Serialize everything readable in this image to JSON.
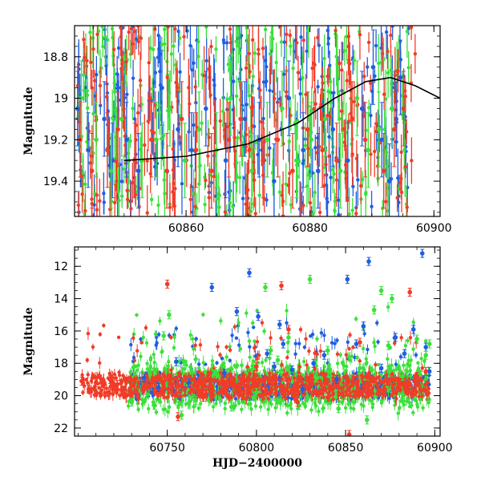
{
  "chart_data": [
    {
      "type": "scatter",
      "title": "",
      "xlabel": "",
      "ylabel": "Magnitude",
      "xlim": [
        60842,
        60901
      ],
      "ylim": [
        19.57,
        18.65
      ],
      "y_inverted": true,
      "grid": false,
      "x_ticks": [
        60860,
        60880,
        60900
      ],
      "y_ticks": [
        18.8,
        19,
        19.2,
        19.4
      ],
      "x_tick_labels": [
        "60860",
        "60880",
        "60900"
      ],
      "y_tick_labels": [
        "18.8",
        "19",
        "19.2",
        "19.4"
      ],
      "series": [
        {
          "color": "#1f5fe0",
          "points": [
            [
              60842.5,
              19.05
            ],
            [
              60844.2,
              19.25
            ],
            [
              60846.8,
              19.1
            ],
            [
              60848.1,
              19.3
            ],
            [
              60850.4,
              19.2
            ],
            [
              60852.3,
              19.35
            ],
            [
              60856.1,
              18.95
            ],
            [
              60858.7,
              19.15
            ],
            [
              60860.9,
              19.25
            ],
            [
              60863.2,
              19.05
            ],
            [
              60866.4,
              19.3
            ],
            [
              60869.5,
              19.1
            ],
            [
              60871.8,
              19.2
            ],
            [
              60874.2,
              19.4
            ],
            [
              60876.6,
              19.0
            ],
            [
              60878.9,
              19.25
            ],
            [
              60881.3,
              19.35
            ],
            [
              60883.7,
              19.15
            ],
            [
              60886.1,
              19.3
            ],
            [
              60888.4,
              19.05
            ],
            [
              60890.2,
              18.85
            ],
            [
              60891.6,
              19.2
            ],
            [
              60892.8,
              19.4
            ],
            [
              60893.9,
              19.1
            ],
            [
              60894.6,
              18.9
            ]
          ]
        },
        {
          "color": "#3ce03c",
          "points": [
            [
              60843.1,
              19.0
            ],
            [
              60845.5,
              19.2
            ],
            [
              60847.9,
              19.35
            ],
            [
              60849.6,
              19.1
            ],
            [
              60852.9,
              19.3
            ],
            [
              60855.2,
              19.2
            ],
            [
              60857.4,
              19.05
            ],
            [
              60859.8,
              19.3
            ],
            [
              60862.1,
              19.15
            ],
            [
              60864.9,
              19.25
            ],
            [
              60867.2,
              19.0
            ],
            [
              60870.6,
              19.35
            ],
            [
              60873.1,
              19.2
            ],
            [
              60875.5,
              19.05
            ],
            [
              60877.8,
              19.3
            ],
            [
              60880.2,
              19.2
            ],
            [
              60882.4,
              19.1
            ],
            [
              60884.9,
              19.35
            ],
            [
              60887.6,
              19.0
            ],
            [
              60889.4,
              19.25
            ],
            [
              60891.1,
              19.15
            ],
            [
              60893.2,
              19.05
            ]
          ]
        },
        {
          "color": "#f03c28",
          "points": [
            [
              60842.9,
              19.2
            ],
            [
              60844.8,
              19.35
            ],
            [
              60847.3,
              19.25
            ],
            [
              60849.0,
              19.15
            ],
            [
              60851.7,
              19.3
            ],
            [
              60854.4,
              19.2
            ],
            [
              60856.9,
              19.35
            ],
            [
              60859.3,
              19.1
            ],
            [
              60861.6,
              19.25
            ],
            [
              60864.1,
              19.35
            ],
            [
              60866.9,
              19.2
            ],
            [
              60868.8,
              19.1
            ],
            [
              60872.4,
              19.3
            ],
            [
              60874.8,
              19.2
            ],
            [
              60877.2,
              19.35
            ],
            [
              60879.6,
              19.15
            ],
            [
              60882.0,
              19.25
            ],
            [
              60884.3,
              19.3
            ],
            [
              60886.8,
              19.1
            ],
            [
              60888.9,
              19.2
            ],
            [
              60891.9,
              19.35
            ],
            [
              60893.6,
              19.15
            ],
            [
              60895.1,
              19.05
            ]
          ]
        }
      ],
      "model_curve": {
        "color": "#000000",
        "points": [
          [
            60850,
            19.3
          ],
          [
            60860,
            19.28
          ],
          [
            60870,
            19.22
          ],
          [
            60878,
            19.12
          ],
          [
            60884,
            19.0
          ],
          [
            60889,
            18.92
          ],
          [
            60893,
            18.9
          ],
          [
            60897,
            18.94
          ],
          [
            60901,
            19.0
          ]
        ]
      }
    },
    {
      "type": "scatter",
      "title": "",
      "xlabel": "HJD−2400000",
      "ylabel": "Magnitude",
      "xlim": [
        60698,
        60903
      ],
      "ylim": [
        22.5,
        10.8
      ],
      "y_inverted": true,
      "grid": false,
      "x_ticks": [
        60750,
        60800,
        60850,
        60900
      ],
      "y_ticks": [
        12,
        14,
        16,
        18,
        20,
        22
      ],
      "x_tick_labels": [
        "60750",
        "60800",
        "60850",
        "60900"
      ],
      "y_tick_labels": [
        "12",
        "14",
        "16",
        "18",
        "20",
        "22"
      ],
      "series": [
        {
          "color": "#1f5fe0",
          "points": [
            [
              60737,
              18.9
            ],
            [
              60745,
              19.5
            ],
            [
              60755,
              17.9
            ],
            [
              60762,
              19.2
            ],
            [
              60775,
              13.3
            ],
            [
              60782,
              18.6
            ],
            [
              60789,
              14.8
            ],
            [
              60796,
              12.4
            ],
            [
              60801,
              15.1
            ],
            [
              60806,
              17.4
            ],
            [
              60810,
              18.2
            ],
            [
              60813,
              15.6
            ],
            [
              60815,
              16.8
            ],
            [
              60820,
              18.4
            ],
            [
              60826,
              19.6
            ],
            [
              60832,
              18.0
            ],
            [
              60838,
              17.5
            ],
            [
              60845,
              19.0
            ],
            [
              60851,
              12.8
            ],
            [
              60856,
              16.8
            ],
            [
              60860,
              15.7
            ],
            [
              60863,
              11.7
            ],
            [
              60870,
              18.3
            ],
            [
              60878,
              16.4
            ],
            [
              60883,
              17.4
            ],
            [
              60888,
              15.9
            ],
            [
              60893,
              11.2
            ],
            [
              60895,
              17.0
            ],
            [
              60897,
              18.5
            ]
          ]
        },
        {
          "color": "#3ce03c",
          "points": [
            [
              60730,
              20.4
            ],
            [
              60743,
              20.6
            ],
            [
              60748,
              16.3
            ],
            [
              60751,
              15.0
            ],
            [
              60758,
              21.2
            ],
            [
              60766,
              20.3
            ],
            [
              60777,
              18.5
            ],
            [
              60786,
              20.7
            ],
            [
              60800,
              19.8
            ],
            [
              60805,
              13.3
            ],
            [
              60808,
              17.2
            ],
            [
              60812,
              17.8
            ],
            [
              60818,
              16.4
            ],
            [
              60824,
              20.6
            ],
            [
              60830,
              12.8
            ],
            [
              60834,
              18.9
            ],
            [
              60840,
              17.2
            ],
            [
              60846,
              20.8
            ],
            [
              60852,
              17.6
            ],
            [
              60858,
              18.3
            ],
            [
              60862,
              21.5
            ],
            [
              60866,
              14.7
            ],
            [
              60870,
              13.5
            ],
            [
              60874,
              16.9
            ],
            [
              60876,
              14.0
            ],
            [
              60882,
              18.8
            ],
            [
              60890,
              16.5
            ],
            [
              60895,
              17.5
            ],
            [
              60897,
              16.8
            ]
          ]
        },
        {
          "color": "#f03c28",
          "points": [
            [
              60702,
              19.1
            ],
            [
              60706,
              19.6
            ],
            [
              60710,
              19.2
            ],
            [
              60714,
              19.4
            ],
            [
              60718,
              19.0
            ],
            [
              60722,
              19.3
            ],
            [
              60750,
              13.1
            ],
            [
              60756,
              21.3
            ],
            [
              60770,
              20.1
            ],
            [
              60790,
              19.8
            ],
            [
              60800,
              18.2
            ],
            [
              60814,
              13.2
            ],
            [
              60818,
              15.9
            ],
            [
              60823,
              20.4
            ],
            [
              60830,
              18.9
            ],
            [
              60840,
              20.1
            ],
            [
              60848,
              19.9
            ],
            [
              60852,
              22.4
            ],
            [
              60858,
              16.7
            ],
            [
              60862,
              19.2
            ],
            [
              60872,
              19.6
            ],
            [
              60880,
              19.5
            ],
            [
              60886,
              13.6
            ],
            [
              60890,
              18.8
            ],
            [
              60895,
              18.5
            ]
          ]
        }
      ]
    }
  ]
}
